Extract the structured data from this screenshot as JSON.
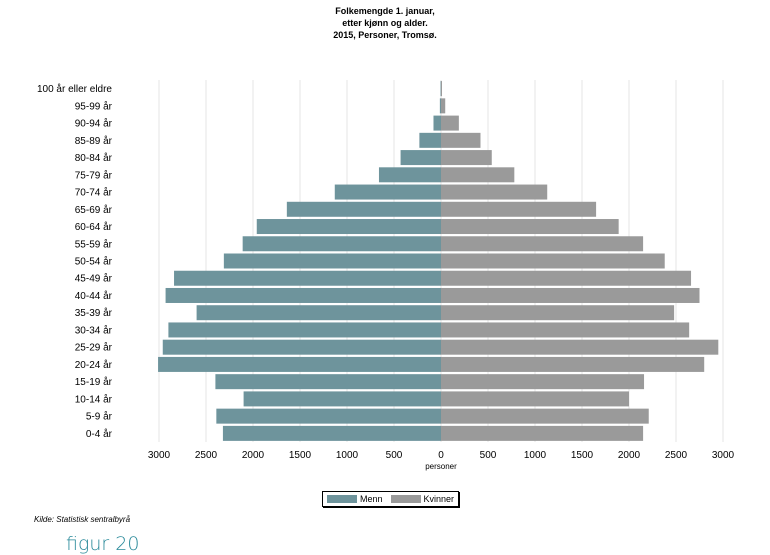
{
  "chart_data": {
    "type": "bar",
    "orientation": "horizontal",
    "title_lines": [
      "Folkemengde 1. januar,",
      "etter kjønn og alder.",
      "2015, Personer, Tromsø."
    ],
    "xlabel": "personer",
    "xlim": [
      -3000,
      3000
    ],
    "x_ticks": [
      -3000,
      -2500,
      -2000,
      -1500,
      -1000,
      -500,
      0,
      500,
      1000,
      1500,
      2000,
      2500,
      3000
    ],
    "x_tick_labels": [
      "3000",
      "2500",
      "2000",
      "1500",
      "1000",
      "500",
      "0",
      "500",
      "1000",
      "1500",
      "2000",
      "2500",
      "3000"
    ],
    "categories": [
      "100 år eller eldre",
      "95-99 år",
      "90-94 år",
      "85-89 år",
      "80-84 år",
      "75-79 år",
      "70-74 år",
      "65-69 år",
      "60-64 år",
      "55-59 år",
      "50-54 år",
      "45-49 år",
      "40-44 år",
      "35-39 år",
      "30-34 år",
      "25-29 år",
      "20-24 år",
      "15-19 år",
      "10-14 år",
      "5-9 år",
      "0-4 år"
    ],
    "series": [
      {
        "name": "Menn",
        "color": "#6e949c",
        "values": [
          5,
          12,
          80,
          230,
          430,
          660,
          1130,
          1640,
          1960,
          2110,
          2310,
          2840,
          2930,
          2600,
          2900,
          2960,
          3010,
          2400,
          2100,
          2390,
          2320
        ]
      },
      {
        "name": "Kvinner",
        "color": "#9a9a9a",
        "values": [
          10,
          45,
          190,
          420,
          540,
          780,
          1130,
          1650,
          1890,
          2150,
          2380,
          2660,
          2750,
          2480,
          2640,
          2950,
          2800,
          2160,
          2000,
          2210,
          2150
        ]
      }
    ],
    "grid": "vertical",
    "legend_position": "bottom"
  },
  "source_text": "Kilde: Statistisk sentralbyrå",
  "figure_label": "figur 20",
  "colors": {
    "menn": "#6e949c",
    "kvinner": "#9a9a9a",
    "figure_label": "#2a8a9a",
    "grid": "#e4e4e4"
  }
}
